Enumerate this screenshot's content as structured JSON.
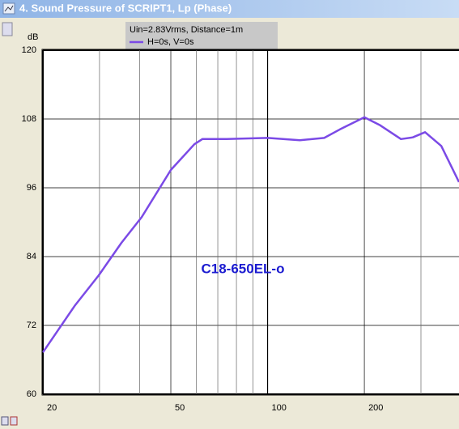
{
  "window_title": "4. Sound Pressure of SCRIPT1, Lp (Phase)",
  "chart_data": {
    "type": "line",
    "y_unit": "dB",
    "legend_header": "Uin=2.83Vrms, Distance=1m",
    "annotation": "C18-650EL-o",
    "x_scale": "log",
    "xlim": [
      20,
      394
    ],
    "xticks": [
      20,
      50,
      100,
      200
    ],
    "xminor": [
      30,
      40,
      60,
      70,
      80,
      90,
      300
    ],
    "ylim": [
      60,
      120
    ],
    "yticks": [
      60,
      72,
      84,
      96,
      108,
      120
    ],
    "grid": true,
    "series": [
      {
        "name": "H=0s, V=0s",
        "color": "#7b4ae6",
        "x": [
          20,
          25.1,
          29.8,
          35.1,
          40.6,
          50,
          59.2,
          62.7,
          74.6,
          100,
          126,
          150,
          168,
          200,
          224,
          260,
          283,
          309,
          347,
          394
        ],
        "values": [
          67.3,
          75.4,
          80.7,
          86.4,
          90.9,
          99.1,
          103.6,
          104.5,
          104.5,
          104.7,
          104.3,
          104.7,
          106.2,
          108.3,
          106.9,
          104.5,
          104.8,
          105.7,
          103.3,
          97.0
        ]
      }
    ]
  }
}
